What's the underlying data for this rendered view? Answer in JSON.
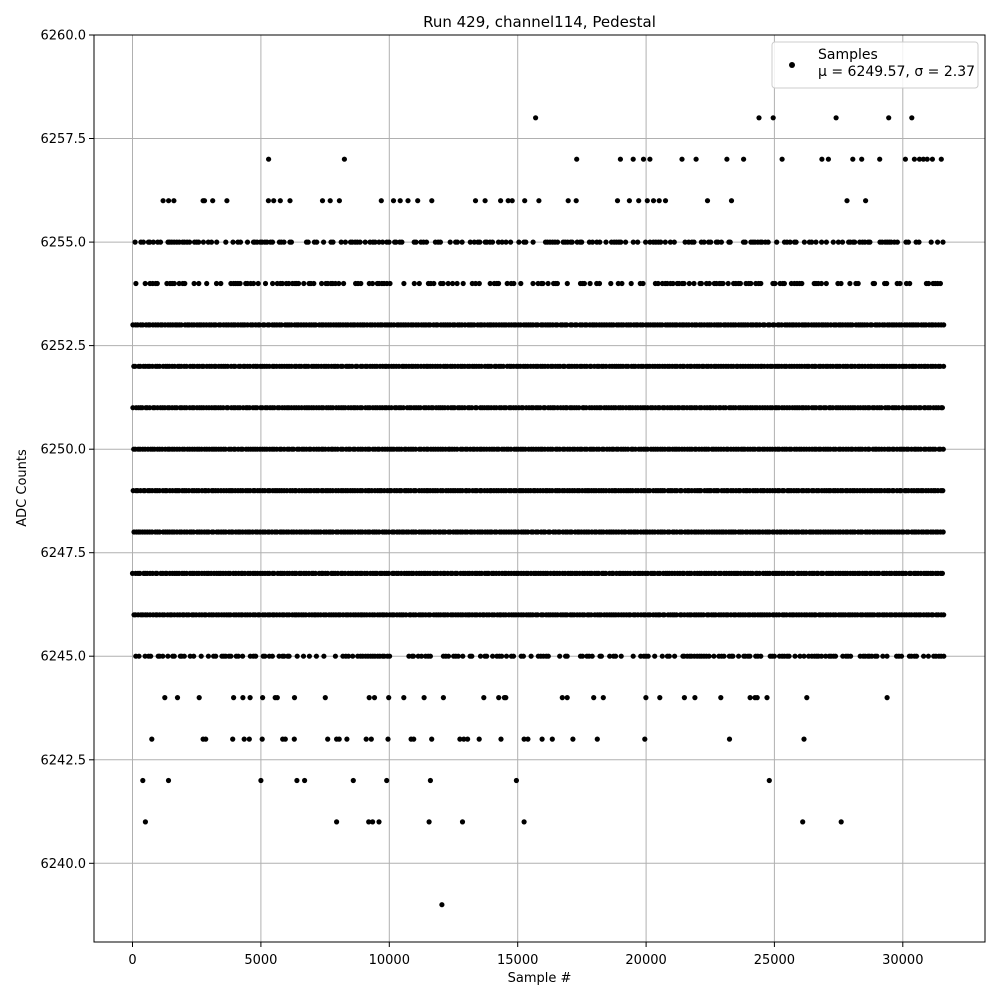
{
  "chart_data": {
    "type": "scatter",
    "title": "Run 429, channel114, Pedestal",
    "xlabel": "Sample #",
    "ylabel": "ADC Counts",
    "xlim": [
      -1500,
      33200
    ],
    "ylim": [
      6238.1,
      6260.0
    ],
    "xticks": [
      0,
      5000,
      10000,
      15000,
      20000,
      25000,
      30000
    ],
    "xtick_labels": [
      "0",
      "5000",
      "10000",
      "15000",
      "20000",
      "25000",
      "30000"
    ],
    "yticks": [
      6240.0,
      6242.5,
      6245.0,
      6247.5,
      6250.0,
      6252.5,
      6255.0,
      6257.5,
      6260.0
    ],
    "ytick_labels": [
      "6240.0",
      "6242.5",
      "6245.0",
      "6247.5",
      "6250.0",
      "6252.5",
      "6255.0",
      "6257.5",
      "6260.0"
    ],
    "grid": true,
    "legend_position": "top-right",
    "marker_color": "#000000",
    "series": [
      {
        "name": "Samples",
        "stat_line": "μ = 6249.57, σ = 2.37",
        "x_range": [
          0,
          31600
        ],
        "levels": [
          {
            "y": 6246,
            "x_range": [
              0,
              31600
            ],
            "density": "dense"
          },
          {
            "y": 6247,
            "x_range": [
              0,
              31600
            ],
            "density": "dense"
          },
          {
            "y": 6248,
            "x_range": [
              0,
              31600
            ],
            "density": "dense"
          },
          {
            "y": 6249,
            "x_range": [
              0,
              31600
            ],
            "density": "dense"
          },
          {
            "y": 6250,
            "x_range": [
              0,
              31600
            ],
            "density": "dense"
          },
          {
            "y": 6251,
            "x_range": [
              0,
              31600
            ],
            "density": "dense"
          },
          {
            "y": 6252,
            "x_range": [
              0,
              31600
            ],
            "density": "dense"
          },
          {
            "y": 6253,
            "x_range": [
              0,
              31600
            ],
            "density": "dense"
          },
          {
            "y": 6245,
            "x_range": [
              100,
              31600
            ],
            "density": "medium"
          },
          {
            "y": 6254,
            "x_range": [
              100,
              31600
            ],
            "density": "medium"
          },
          {
            "y": 6255,
            "x_range": [
              0,
              31600
            ],
            "density": "medium"
          },
          {
            "y": 6244,
            "x_range": [
              0,
              29400
            ],
            "density": "sparse"
          },
          {
            "y": 6256,
            "x_range": [
              900,
              31600
            ],
            "density": "sparse"
          }
        ],
        "points": [
          {
            "x": 12050,
            "y": 6239
          },
          {
            "x": 500,
            "y": 6241
          },
          {
            "x": 7950,
            "y": 6241
          },
          {
            "x": 9200,
            "y": 6241
          },
          {
            "x": 9350,
            "y": 6241
          },
          {
            "x": 9600,
            "y": 6241
          },
          {
            "x": 11550,
            "y": 6241
          },
          {
            "x": 12850,
            "y": 6241
          },
          {
            "x": 15250,
            "y": 6241
          },
          {
            "x": 26100,
            "y": 6241
          },
          {
            "x": 27600,
            "y": 6241
          },
          {
            "x": 400,
            "y": 6242
          },
          {
            "x": 1400,
            "y": 6242
          },
          {
            "x": 5000,
            "y": 6242
          },
          {
            "x": 6400,
            "y": 6242
          },
          {
            "x": 6700,
            "y": 6242
          },
          {
            "x": 8600,
            "y": 6242
          },
          {
            "x": 9900,
            "y": 6242
          },
          {
            "x": 11600,
            "y": 6242
          },
          {
            "x": 14950,
            "y": 6242
          },
          {
            "x": 24800,
            "y": 6242
          },
          {
            "x": 750,
            "y": 6243
          },
          {
            "x": 2750,
            "y": 6243
          },
          {
            "x": 2850,
            "y": 6243
          },
          {
            "x": 3900,
            "y": 6243
          },
          {
            "x": 4350,
            "y": 6243
          },
          {
            "x": 4550,
            "y": 6243
          },
          {
            "x": 5050,
            "y": 6243
          },
          {
            "x": 5850,
            "y": 6243
          },
          {
            "x": 5950,
            "y": 6243
          },
          {
            "x": 6300,
            "y": 6243
          },
          {
            "x": 7600,
            "y": 6243
          },
          {
            "x": 7950,
            "y": 6243
          },
          {
            "x": 8050,
            "y": 6243
          },
          {
            "x": 8350,
            "y": 6243
          },
          {
            "x": 9100,
            "y": 6243
          },
          {
            "x": 9300,
            "y": 6243
          },
          {
            "x": 9950,
            "y": 6243
          },
          {
            "x": 10850,
            "y": 6243
          },
          {
            "x": 10950,
            "y": 6243
          },
          {
            "x": 11650,
            "y": 6243
          },
          {
            "x": 12750,
            "y": 6243
          },
          {
            "x": 12900,
            "y": 6243
          },
          {
            "x": 13050,
            "y": 6243
          },
          {
            "x": 13500,
            "y": 6243
          },
          {
            "x": 14350,
            "y": 6243
          },
          {
            "x": 15250,
            "y": 6243
          },
          {
            "x": 15400,
            "y": 6243
          },
          {
            "x": 15950,
            "y": 6243
          },
          {
            "x": 16350,
            "y": 6243
          },
          {
            "x": 17150,
            "y": 6243
          },
          {
            "x": 18100,
            "y": 6243
          },
          {
            "x": 19950,
            "y": 6243
          },
          {
            "x": 23250,
            "y": 6243
          },
          {
            "x": 26150,
            "y": 6243
          },
          {
            "x": 5300,
            "y": 6257
          },
          {
            "x": 8250,
            "y": 6257
          },
          {
            "x": 17300,
            "y": 6257
          },
          {
            "x": 19000,
            "y": 6257
          },
          {
            "x": 19500,
            "y": 6257
          },
          {
            "x": 19900,
            "y": 6257
          },
          {
            "x": 20150,
            "y": 6257
          },
          {
            "x": 21400,
            "y": 6257
          },
          {
            "x": 21950,
            "y": 6257
          },
          {
            "x": 23150,
            "y": 6257
          },
          {
            "x": 23800,
            "y": 6257
          },
          {
            "x": 25300,
            "y": 6257
          },
          {
            "x": 26850,
            "y": 6257
          },
          {
            "x": 27100,
            "y": 6257
          },
          {
            "x": 28050,
            "y": 6257
          },
          {
            "x": 28400,
            "y": 6257
          },
          {
            "x": 29100,
            "y": 6257
          },
          {
            "x": 30100,
            "y": 6257
          },
          {
            "x": 30450,
            "y": 6257
          },
          {
            "x": 30650,
            "y": 6257
          },
          {
            "x": 30800,
            "y": 6257
          },
          {
            "x": 30950,
            "y": 6257
          },
          {
            "x": 31150,
            "y": 6257
          },
          {
            "x": 31500,
            "y": 6257
          },
          {
            "x": 15700,
            "y": 6258
          },
          {
            "x": 24400,
            "y": 6258
          },
          {
            "x": 24950,
            "y": 6258
          },
          {
            "x": 27400,
            "y": 6258
          },
          {
            "x": 29450,
            "y": 6258
          },
          {
            "x": 30350,
            "y": 6258
          }
        ]
      }
    ]
  }
}
